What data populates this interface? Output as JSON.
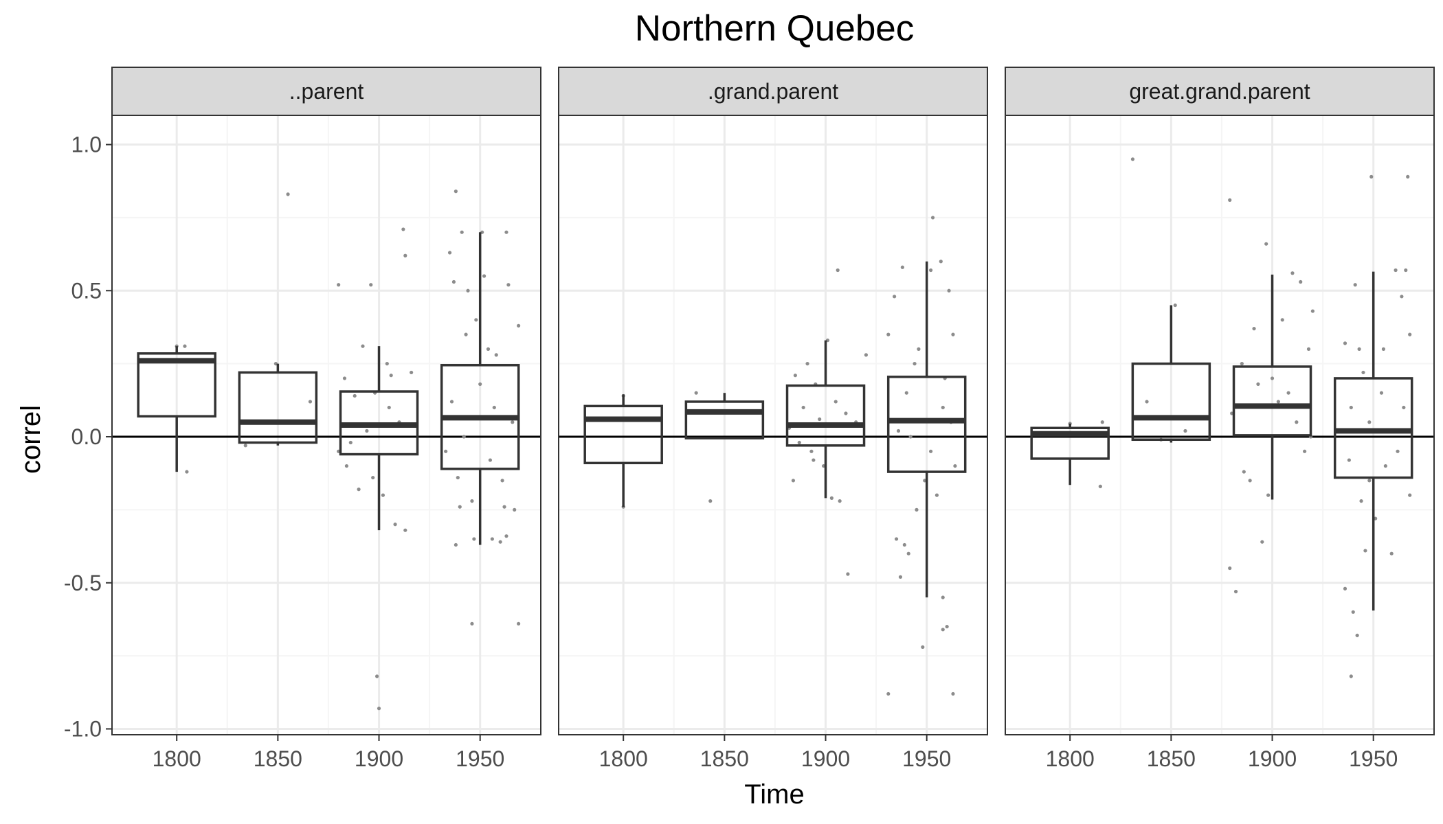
{
  "chart_data": {
    "type": "boxplot-facets",
    "title": "Northern Quebec",
    "xlabel": "Time",
    "ylabel": "correl",
    "x_ticks": [
      1800,
      1850,
      1900,
      1950
    ],
    "y_ticks": [
      1.0,
      0.5,
      0.0,
      -0.5,
      -1.0
    ],
    "y_tick_labels": [
      "1.0",
      "0.5",
      "0.0",
      "-0.5",
      "-1.0"
    ],
    "xlim": [
      1768,
      1980
    ],
    "ylim": [
      -1.02,
      1.1
    ],
    "hline_y": 0,
    "grid": true,
    "colors": {
      "strip_bg": "#d9d9d9",
      "box": "#333333",
      "points": "#8c8c8c",
      "grid_major": "#ebebeb",
      "grid_minor": "#f5f5f5"
    },
    "facets": [
      {
        "label": "..parent",
        "boxes": [
          {
            "x": 1800,
            "min": -0.12,
            "q1": 0.07,
            "median": 0.26,
            "q3": 0.285,
            "max": 0.31
          },
          {
            "x": 1850,
            "min": -0.03,
            "q1": -0.02,
            "median": 0.05,
            "q3": 0.22,
            "max": 0.25
          },
          {
            "x": 1900,
            "min": -0.32,
            "q1": -0.06,
            "median": 0.04,
            "q3": 0.155,
            "max": 0.31
          },
          {
            "x": 1950,
            "min": -0.37,
            "q1": -0.11,
            "median": 0.065,
            "q3": 0.245,
            "max": 0.7
          }
        ],
        "points": [
          [
            1800,
            0.31
          ],
          [
            1804,
            0.31
          ],
          [
            1805,
            -0.12
          ],
          [
            1849,
            0.25
          ],
          [
            1834,
            -0.03
          ],
          [
            1855,
            0.83
          ],
          [
            1866,
            0.12
          ],
          [
            1880,
            0.52
          ],
          [
            1896,
            0.52
          ],
          [
            1892,
            0.31
          ],
          [
            1883,
            0.2
          ],
          [
            1888,
            0.14
          ],
          [
            1905,
            0.1
          ],
          [
            1910,
            0.05
          ],
          [
            1886,
            -0.02
          ],
          [
            1894,
            0.02
          ],
          [
            1899,
            -0.82
          ],
          [
            1900,
            -0.93
          ],
          [
            1912,
            0.71
          ],
          [
            1913,
            0.62
          ],
          [
            1908,
            -0.3
          ],
          [
            1913,
            -0.32
          ],
          [
            1884,
            -0.1
          ],
          [
            1890,
            -0.18
          ],
          [
            1897,
            -0.14
          ],
          [
            1902,
            -0.2
          ],
          [
            1906,
            0.21
          ],
          [
            1916,
            0.22
          ],
          [
            1880,
            -0.05
          ],
          [
            1898,
            0.15
          ],
          [
            1904,
            0.25
          ],
          [
            1938,
            0.84
          ],
          [
            1941,
            0.7
          ],
          [
            1951,
            0.7
          ],
          [
            1952,
            0.55
          ],
          [
            1963,
            0.7
          ],
          [
            1964,
            0.52
          ],
          [
            1935,
            0.63
          ],
          [
            1937,
            0.53
          ],
          [
            1944,
            0.5
          ],
          [
            1948,
            0.4
          ],
          [
            1969,
            0.38
          ],
          [
            1943,
            0.35
          ],
          [
            1954,
            0.3
          ],
          [
            1958,
            0.28
          ],
          [
            1946,
            -0.64
          ],
          [
            1969,
            -0.64
          ],
          [
            1938,
            -0.37
          ],
          [
            1947,
            -0.35
          ],
          [
            1956,
            -0.35
          ],
          [
            1960,
            -0.36
          ],
          [
            1963,
            -0.34
          ],
          [
            1940,
            -0.24
          ],
          [
            1946,
            -0.22
          ],
          [
            1962,
            -0.24
          ],
          [
            1967,
            -0.25
          ],
          [
            1933,
            -0.05
          ],
          [
            1936,
            0.12
          ],
          [
            1942,
            0.0
          ],
          [
            1950,
            0.18
          ],
          [
            1957,
            0.1
          ],
          [
            1961,
            -0.15
          ],
          [
            1966,
            0.05
          ],
          [
            1939,
            -0.14
          ],
          [
            1955,
            -0.08
          ]
        ]
      },
      {
        "label": ".grand.parent",
        "boxes": [
          {
            "x": 1800,
            "min": -0.24,
            "q1": -0.09,
            "median": 0.06,
            "q3": 0.105,
            "max": 0.145
          },
          {
            "x": 1850,
            "min": -0.005,
            "q1": -0.005,
            "median": 0.085,
            "q3": 0.12,
            "max": 0.15
          },
          {
            "x": 1900,
            "min": -0.21,
            "q1": -0.03,
            "median": 0.04,
            "q3": 0.175,
            "max": 0.33
          },
          {
            "x": 1950,
            "min": -0.55,
            "q1": -0.12,
            "median": 0.055,
            "q3": 0.205,
            "max": 0.6
          }
        ],
        "points": [
          [
            1800,
            0.14
          ],
          [
            1800,
            -0.24
          ],
          [
            1836,
            0.15
          ],
          [
            1843,
            -0.22
          ],
          [
            1906,
            0.57
          ],
          [
            1901,
            0.33
          ],
          [
            1891,
            0.25
          ],
          [
            1885,
            0.21
          ],
          [
            1895,
            0.18
          ],
          [
            1905,
            0.12
          ],
          [
            1910,
            0.08
          ],
          [
            1882,
            0.03
          ],
          [
            1887,
            -0.02
          ],
          [
            1893,
            -0.05
          ],
          [
            1899,
            -0.1
          ],
          [
            1903,
            -0.21
          ],
          [
            1907,
            -0.22
          ],
          [
            1911,
            -0.47
          ],
          [
            1884,
            -0.15
          ],
          [
            1889,
            0.1
          ],
          [
            1897,
            0.06
          ],
          [
            1915,
            0.05
          ],
          [
            1920,
            0.28
          ],
          [
            1894,
            -0.08
          ],
          [
            1953,
            0.75
          ],
          [
            1957,
            0.6
          ],
          [
            1938,
            0.58
          ],
          [
            1952,
            0.57
          ],
          [
            1934,
            0.48
          ],
          [
            1961,
            0.5
          ],
          [
            1963,
            0.35
          ],
          [
            1946,
            0.3
          ],
          [
            1931,
            0.35
          ],
          [
            1944,
            0.25
          ],
          [
            1940,
            0.15
          ],
          [
            1958,
            0.1
          ],
          [
            1962,
            0.05
          ],
          [
            1935,
            -0.35
          ],
          [
            1939,
            -0.37
          ],
          [
            1937,
            -0.48
          ],
          [
            1941,
            -0.4
          ],
          [
            1931,
            -0.88
          ],
          [
            1963,
            -0.88
          ],
          [
            1948,
            -0.72
          ],
          [
            1958,
            -0.66
          ],
          [
            1960,
            -0.65
          ],
          [
            1958,
            -0.55
          ],
          [
            1945,
            -0.25
          ],
          [
            1955,
            -0.2
          ],
          [
            1949,
            -0.15
          ],
          [
            1964,
            -0.1
          ],
          [
            1936,
            0.02
          ],
          [
            1952,
            -0.05
          ],
          [
            1942,
            0.0
          ],
          [
            1959,
            0.2
          ]
        ]
      },
      {
        "label": "great.grand.parent",
        "boxes": [
          {
            "x": 1800,
            "min": -0.165,
            "q1": -0.075,
            "median": 0.01,
            "q3": 0.03,
            "max": 0.045
          },
          {
            "x": 1850,
            "min": -0.02,
            "q1": -0.01,
            "median": 0.065,
            "q3": 0.25,
            "max": 0.45
          },
          {
            "x": 1900,
            "min": -0.215,
            "q1": 0.005,
            "median": 0.105,
            "q3": 0.24,
            "max": 0.555
          },
          {
            "x": 1950,
            "min": -0.595,
            "q1": -0.14,
            "median": 0.02,
            "q3": 0.2,
            "max": 0.565
          }
        ],
        "points": [
          [
            1800,
            0.045
          ],
          [
            1815,
            -0.17
          ],
          [
            1816,
            0.05
          ],
          [
            1831,
            0.95
          ],
          [
            1852,
            0.45
          ],
          [
            1838,
            0.12
          ],
          [
            1857,
            0.02
          ],
          [
            1845,
            -0.01
          ],
          [
            1879,
            0.81
          ],
          [
            1897,
            0.66
          ],
          [
            1910,
            0.56
          ],
          [
            1914,
            0.53
          ],
          [
            1920,
            0.43
          ],
          [
            1905,
            0.4
          ],
          [
            1891,
            0.37
          ],
          [
            1918,
            0.3
          ],
          [
            1879,
            -0.45
          ],
          [
            1882,
            -0.53
          ],
          [
            1895,
            -0.36
          ],
          [
            1889,
            -0.15
          ],
          [
            1886,
            -0.12
          ],
          [
            1898,
            -0.2
          ],
          [
            1903,
            0.12
          ],
          [
            1900,
            0.2
          ],
          [
            1908,
            0.15
          ],
          [
            1912,
            0.05
          ],
          [
            1880,
            0.08
          ],
          [
            1885,
            0.25
          ],
          [
            1893,
            0.18
          ],
          [
            1916,
            -0.05
          ],
          [
            1919,
            0.0
          ],
          [
            1949,
            0.89
          ],
          [
            1967,
            0.89
          ],
          [
            1941,
            0.52
          ],
          [
            1961,
            0.57
          ],
          [
            1966,
            0.57
          ],
          [
            1964,
            0.48
          ],
          [
            1968,
            0.35
          ],
          [
            1936,
            0.32
          ],
          [
            1943,
            0.3
          ],
          [
            1955,
            0.3
          ],
          [
            1945,
            0.22
          ],
          [
            1954,
            0.15
          ],
          [
            1939,
            0.1
          ],
          [
            1948,
            0.05
          ],
          [
            1958,
            0.02
          ],
          [
            1936,
            -0.52
          ],
          [
            1940,
            -0.6
          ],
          [
            1942,
            -0.68
          ],
          [
            1939,
            -0.82
          ],
          [
            1946,
            -0.39
          ],
          [
            1959,
            -0.4
          ],
          [
            1951,
            -0.28
          ],
          [
            1944,
            -0.22
          ],
          [
            1948,
            -0.15
          ],
          [
            1956,
            -0.1
          ],
          [
            1968,
            -0.2
          ],
          [
            1962,
            -0.05
          ],
          [
            1938,
            -0.08
          ],
          [
            1965,
            0.1
          ]
        ]
      }
    ]
  }
}
